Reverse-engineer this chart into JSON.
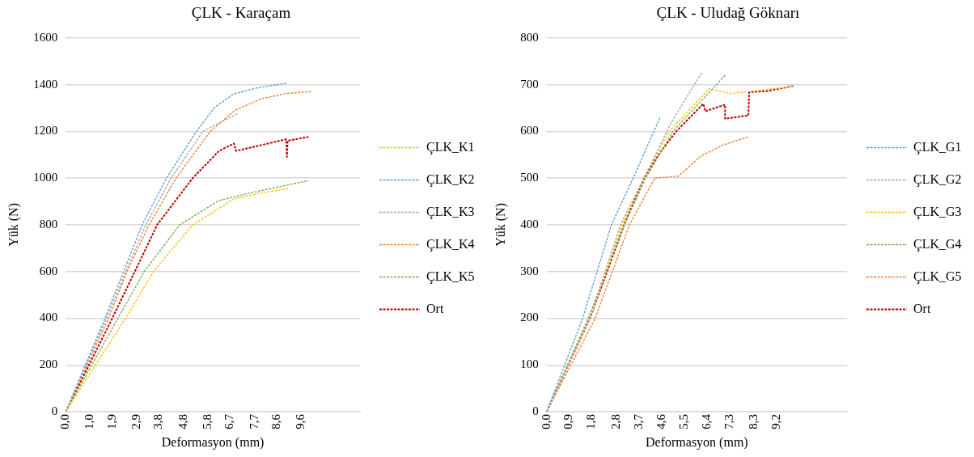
{
  "chart_data": [
    {
      "type": "line",
      "title": "ÇLK - Karaçam",
      "xlabel": "Deformasyon (mm)",
      "ylabel": "Yük (N)",
      "xlim": [
        0,
        12
      ],
      "ylim": [
        0,
        1600
      ],
      "xticks": [
        {
          "value": 0,
          "label": "0,0"
        },
        {
          "value": 1.0,
          "label": "1,0"
        },
        {
          "value": 1.9,
          "label": "1,9"
        },
        {
          "value": 2.9,
          "label": "2,9"
        },
        {
          "value": 3.8,
          "label": "3,8"
        },
        {
          "value": 4.8,
          "label": "4,8"
        },
        {
          "value": 5.8,
          "label": "5,8"
        },
        {
          "value": 6.7,
          "label": "6,7"
        },
        {
          "value": 7.7,
          "label": "7,7"
        },
        {
          "value": 8.6,
          "label": "8,6"
        },
        {
          "value": 9.6,
          "label": "9,6"
        }
      ],
      "yticks": [
        0,
        200,
        400,
        600,
        800,
        1000,
        1200,
        1400,
        1600
      ],
      "grid": "y",
      "legend": "right",
      "marker": "none",
      "line_style": "dashed",
      "series": [
        {
          "name": "ÇLK_K1",
          "color": "#ffc000",
          "x": [
            0,
            2.44,
            3.58,
            5.18,
            6.85,
            8.07,
            9.06
          ],
          "values": [
            0,
            400,
            600,
            800,
            910,
            939,
            954
          ]
        },
        {
          "name": "ÇLK_K2",
          "color": "#5b9bd5",
          "x": [
            0,
            1.6,
            2.36,
            3.12,
            4.11,
            5.33,
            6.09,
            6.85,
            7.77,
            8.99
          ],
          "values": [
            0,
            400,
            600,
            800,
            1000,
            1200,
            1304,
            1360,
            1385,
            1406
          ]
        },
        {
          "name": "ÇLK_K3",
          "color": "#a5a5a5",
          "x": [
            0,
            1.67,
            2.45,
            3.27,
            4.3,
            5.6,
            7.0
          ],
          "values": [
            0,
            400,
            600,
            800,
            1000,
            1200,
            1276
          ]
        },
        {
          "name": "ÇLK_K4",
          "color": "#ed7d31",
          "x": [
            0,
            1.75,
            2.5,
            3.4,
            4.5,
            5.9,
            6.9,
            8.0,
            9.0,
            10.0
          ],
          "values": [
            0,
            400,
            600,
            800,
            1000,
            1200,
            1290,
            1340,
            1362,
            1370
          ]
        },
        {
          "name": "ÇLK_K5",
          "color": "#70ad47",
          "x": [
            0,
            2.13,
            3.2,
            4.65,
            6.25,
            7.47,
            8.84,
            9.9
          ],
          "values": [
            0,
            400,
            600,
            800,
            904,
            935,
            966,
            989
          ]
        },
        {
          "name": "Ort",
          "color": "#c00000",
          "x": [
            0,
            1.9,
            2.82,
            3.73,
            5.18,
            6.25,
            6.86,
            6.95,
            8.99,
            9.02,
            9.05,
            9.9
          ],
          "values": [
            0,
            400,
            600,
            800,
            1000,
            1116,
            1148,
            1116,
            1166,
            1091,
            1160,
            1176
          ]
        }
      ]
    },
    {
      "type": "line",
      "title": "ÇLK - Uludağ Göknarı",
      "xlabel": "Deformasyon (mm)",
      "ylabel": "Yük (N)",
      "xlim": [
        0,
        12
      ],
      "ylim": [
        0,
        800
      ],
      "xticks": [
        {
          "value": 0,
          "label": "0,0"
        },
        {
          "value": 0.9,
          "label": "0,9"
        },
        {
          "value": 1.8,
          "label": "1,8"
        },
        {
          "value": 2.8,
          "label": "2,8"
        },
        {
          "value": 3.7,
          "label": "3,7"
        },
        {
          "value": 4.6,
          "label": "4,6"
        },
        {
          "value": 5.5,
          "label": "5,5"
        },
        {
          "value": 6.4,
          "label": "6,4"
        },
        {
          "value": 7.3,
          "label": "7,3"
        },
        {
          "value": 8.3,
          "label": "8,3"
        },
        {
          "value": 9.2,
          "label": "9,2"
        }
      ],
      "yticks": [
        0,
        100,
        200,
        300,
        400,
        500,
        600,
        700,
        800
      ],
      "grid": "y",
      "legend": "right",
      "marker": "none",
      "line_style": "dashed",
      "series": [
        {
          "name": "ÇLK_G1",
          "color": "#5b9bd5",
          "x": [
            0,
            1.44,
            2.59,
            3.46,
            4.54
          ],
          "values": [
            0,
            200,
            400,
            500,
            631
          ]
        },
        {
          "name": "ÇLK_G2",
          "color": "#a5a5a5",
          "x": [
            0,
            1.73,
            2.95,
            3.89,
            4.97,
            6.19
          ],
          "values": [
            0,
            200,
            400,
            500,
            618,
            725
          ]
        },
        {
          "name": "ÇLK_G3",
          "color": "#ffc000",
          "x": [
            0,
            1.73,
            3.02,
            3.89,
            4.9,
            6.48,
            7.34,
            8.21,
            9.86
          ],
          "values": [
            0,
            200,
            400,
            500,
            600,
            691,
            681,
            686,
            696
          ]
        },
        {
          "name": "ÇLK_G4",
          "color": "#70ad47",
          "x": [
            0,
            1.66,
            3.1,
            3.96,
            5.04,
            7.13
          ],
          "values": [
            0,
            200,
            400,
            500,
            600,
            720
          ]
        },
        {
          "name": "ÇLK_G5",
          "color": "#ed7d31",
          "x": [
            0,
            1.94,
            3.31,
            4.32,
            5.26,
            6.19,
            7.06,
            8.06
          ],
          "values": [
            0,
            200,
            400,
            500,
            504,
            548,
            571,
            588
          ]
        },
        {
          "name": "Ort",
          "color": "#c00000",
          "x": [
            0,
            1.73,
            3.1,
            3.89,
            4.54,
            5.18,
            6.26,
            6.34,
            7.13,
            7.13,
            8.06,
            8.09,
            8.78,
            9.86
          ],
          "values": [
            0,
            200,
            400,
            500,
            555,
            600,
            659,
            643,
            657,
            627,
            634,
            684,
            686,
            697
          ]
        }
      ]
    }
  ]
}
